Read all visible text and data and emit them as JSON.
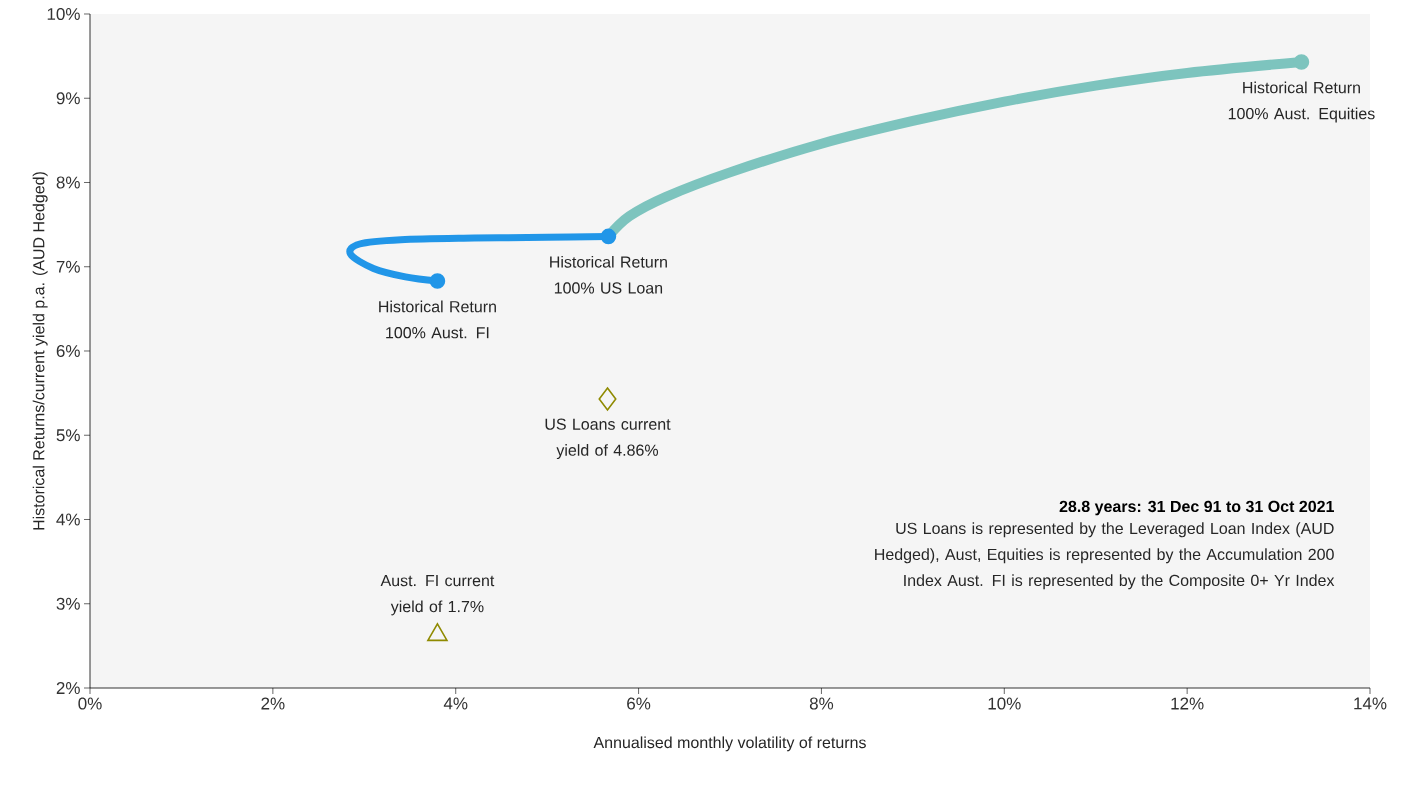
{
  "chart_data": {
    "type": "scatter",
    "xlabel": "Annualised monthly volatility of returns",
    "ylabel": "Historical Returns/current yield p.a. (AUD Hedged)",
    "xlim": [
      0,
      14
    ],
    "ylim": [
      2,
      10
    ],
    "xticks": [
      {
        "value": 0,
        "label": "0%"
      },
      {
        "value": 2,
        "label": "2%"
      },
      {
        "value": 4,
        "label": "4%"
      },
      {
        "value": 6,
        "label": "6%"
      },
      {
        "value": 8,
        "label": "8%"
      },
      {
        "value": 10,
        "label": "10%"
      },
      {
        "value": 12,
        "label": "12%"
      },
      {
        "value": 14,
        "label": "14%"
      }
    ],
    "yticks": [
      {
        "value": 2,
        "label": "2%"
      },
      {
        "value": 3,
        "label": "3%"
      },
      {
        "value": 4,
        "label": "4%"
      },
      {
        "value": 5,
        "label": "5%"
      },
      {
        "value": 6,
        "label": "6%"
      },
      {
        "value": 7,
        "label": "7%"
      },
      {
        "value": 8,
        "label": "8%"
      },
      {
        "value": 9,
        "label": "9%"
      },
      {
        "value": 10,
        "label": "10%"
      }
    ],
    "series": [
      {
        "type": "line",
        "color": "#2196e8",
        "x": [
          3.8,
          3.45,
          3.1,
          2.85,
          2.95,
          3.4,
          4.2,
          5.0,
          5.67
        ],
        "values": [
          6.83,
          6.88,
          6.98,
          7.15,
          7.27,
          7.32,
          7.34,
          7.35,
          7.36
        ]
      },
      {
        "type": "line",
        "color": "#7dc4be",
        "x": [
          5.67,
          5.9,
          6.3,
          7,
          8,
          9,
          10,
          11,
          12,
          13.25
        ],
        "values": [
          7.36,
          7.6,
          7.83,
          8.12,
          8.46,
          8.73,
          8.96,
          9.15,
          9.3,
          9.43
        ]
      },
      {
        "marker": "circle",
        "x": [
          3.8,
          5.67,
          13.25
        ],
        "values": [
          6.83,
          7.36,
          9.43
        ],
        "colors": [
          "#2196e8",
          "#2196e8",
          "#7dc4be"
        ]
      },
      {
        "marker": "diamond",
        "color": "#8f8a00",
        "x": [
          5.66
        ],
        "values": [
          5.43
        ]
      },
      {
        "marker": "triangle",
        "color": "#8f8a00",
        "x": [
          3.8
        ],
        "values": [
          2.63
        ]
      }
    ],
    "annotations": [
      {
        "text": "Historical Return 100% Aust. FI",
        "x": 3.8,
        "y": 6.83
      },
      {
        "text": "Historical Return 100% US Loan",
        "x": 5.67,
        "y": 7.36
      },
      {
        "text": "Historical Return 100% Aust. Equities",
        "x": 13.25,
        "y": 9.43
      },
      {
        "text": "US Loans current yield of 4.86%",
        "x": 5.66,
        "y": 5.43
      },
      {
        "text": "Aust. FI current yield of 1.7%",
        "x": 3.8,
        "y": 2.63
      },
      "28.8 years: 31 Dec 91 to 31 Oct 2021",
      "US Loans is represented by the Leveraged Loan Index (AUD Hedged), Aust, Equities is represented by the Accumulation 200 Index Aust. FI is represented by the Composite 0+ Yr Index"
    ]
  }
}
